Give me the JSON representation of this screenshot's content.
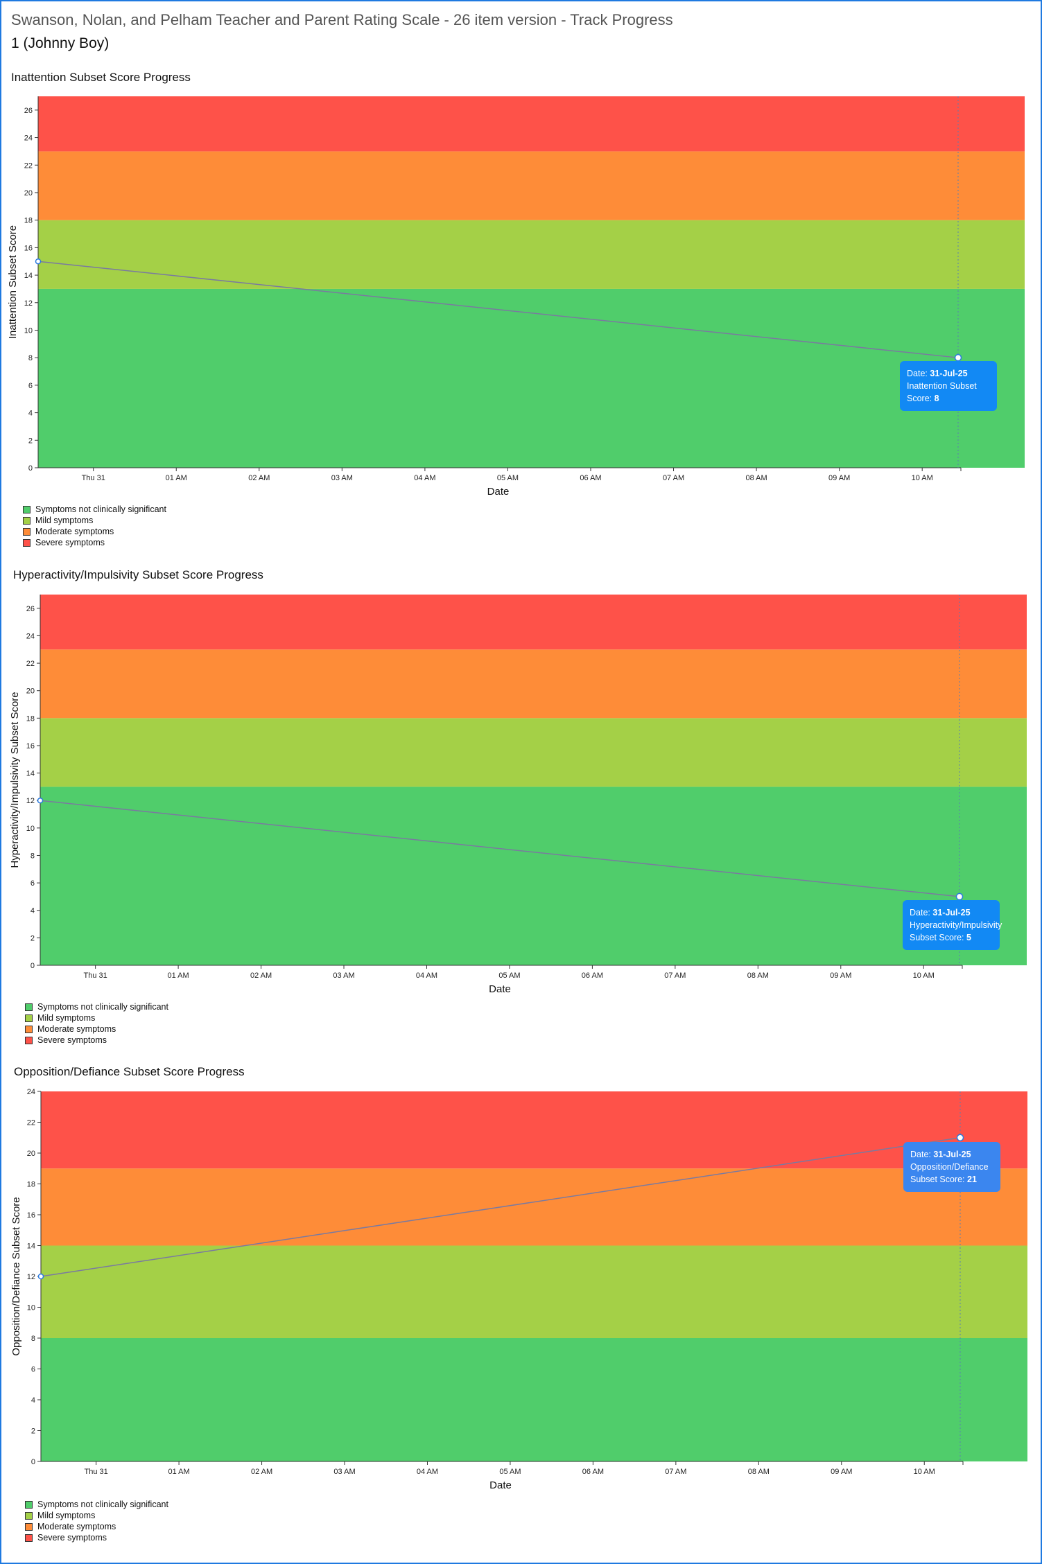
{
  "page": {
    "title": "Swanson, Nolan, and Pelham Teacher and Parent Rating Scale - 26 item version - Track Progress",
    "patient": "1 (Johnny Boy)"
  },
  "legend": {
    "items": [
      {
        "label": "Symptoms not clinically significant",
        "color": "#50cd6b"
      },
      {
        "label": "Mild symptoms",
        "color": "#a4d047"
      },
      {
        "label": "Moderate symptoms",
        "color": "#fe8c38"
      },
      {
        "label": "Severe symptoms",
        "color": "#fe5249"
      }
    ]
  },
  "colors": {
    "line": "#7a7aa0",
    "point_fill": "#ffffff",
    "point_stroke": "#2a7ae0",
    "tooltip_bg": "#1289f4",
    "tooltip_bg_alt": "#3b86ef"
  },
  "chart_data": [
    {
      "type": "line",
      "title": "Inattention Subset Score Progress",
      "xlabel": "Date",
      "ylabel": "Inattention Subset Score",
      "x_ticks": [
        "Thu 31",
        "01 AM",
        "02 AM",
        "03 AM",
        "04 AM",
        "05 AM",
        "06 AM",
        "07 AM",
        "08 AM",
        "09 AM",
        "10 AM"
      ],
      "x_range": [
        "Jul 30 23:20",
        "Jul 31 10:36"
      ],
      "ylim": [
        0,
        27
      ],
      "y_ticks": [
        0,
        2,
        4,
        6,
        8,
        10,
        12,
        14,
        16,
        18,
        20,
        22,
        24,
        26
      ],
      "bands": [
        {
          "label": "Symptoms not clinically significant",
          "from": 0,
          "to": 13
        },
        {
          "label": "Mild symptoms",
          "from": 13,
          "to": 18
        },
        {
          "label": "Moderate symptoms",
          "from": 18,
          "to": 23
        },
        {
          "label": "Severe symptoms",
          "from": 23,
          "to": 27
        }
      ],
      "points": [
        {
          "x": "Jul 30 23:20",
          "y": 15
        },
        {
          "x": "Jul 31 10:26",
          "y": 8
        }
      ],
      "tooltip": {
        "date_label": "Date:",
        "date": "31-Jul-25",
        "score_label_1": "Inattention Subset",
        "score_label_2": "Score:",
        "score": "8"
      }
    },
    {
      "type": "line",
      "title": "Hyperactivity/Impulsivity Subset Score Progress",
      "xlabel": "Date",
      "ylabel": "Hyperactivity/Impulsivity Subset Score",
      "x_ticks": [
        "Thu 31",
        "01 AM",
        "02 AM",
        "03 AM",
        "04 AM",
        "05 AM",
        "06 AM",
        "07 AM",
        "08 AM",
        "09 AM",
        "10 AM"
      ],
      "x_range": [
        "Jul 30 23:20",
        "Jul 31 10:36"
      ],
      "ylim": [
        0,
        27
      ],
      "y_ticks": [
        0,
        2,
        4,
        6,
        8,
        10,
        12,
        14,
        16,
        18,
        20,
        22,
        24,
        26
      ],
      "bands": [
        {
          "label": "Symptoms not clinically significant",
          "from": 0,
          "to": 13
        },
        {
          "label": "Mild symptoms",
          "from": 13,
          "to": 18
        },
        {
          "label": "Moderate symptoms",
          "from": 18,
          "to": 23
        },
        {
          "label": "Severe symptoms",
          "from": 23,
          "to": 27
        }
      ],
      "points": [
        {
          "x": "Jul 30 23:20",
          "y": 12
        },
        {
          "x": "Jul 31 10:26",
          "y": 5
        }
      ],
      "tooltip": {
        "date_label": "Date:",
        "date": "31-Jul-25",
        "score_label_1": "Hyperactivity/Impulsivity",
        "score_label_2": "Subset Score:",
        "score": "5"
      }
    },
    {
      "type": "line",
      "title": "Opposition/Defiance Subset Score Progress",
      "xlabel": "Date",
      "ylabel": "Opposition/Defiance Subset Score",
      "x_ticks": [
        "Thu 31",
        "01 AM",
        "02 AM",
        "03 AM",
        "04 AM",
        "05 AM",
        "06 AM",
        "07 AM",
        "08 AM",
        "09 AM",
        "10 AM"
      ],
      "x_range": [
        "Jul 30 23:20",
        "Jul 31 10:36"
      ],
      "ylim": [
        0,
        24
      ],
      "y_ticks": [
        0,
        2,
        4,
        6,
        8,
        10,
        12,
        14,
        16,
        18,
        20,
        22,
        24
      ],
      "bands": [
        {
          "label": "Symptoms not clinically significant",
          "from": 0,
          "to": 8
        },
        {
          "label": "Mild symptoms",
          "from": 8,
          "to": 14
        },
        {
          "label": "Moderate symptoms",
          "from": 14,
          "to": 19
        },
        {
          "label": "Severe symptoms",
          "from": 19,
          "to": 24
        }
      ],
      "points": [
        {
          "x": "Jul 30 23:20",
          "y": 12
        },
        {
          "x": "Jul 31 10:26",
          "y": 21
        }
      ],
      "tooltip": {
        "date_label": "Date:",
        "date": "31-Jul-25",
        "score_label_1": "Opposition/Defiance",
        "score_label_2": "Subset Score:",
        "score": "21"
      }
    }
  ]
}
